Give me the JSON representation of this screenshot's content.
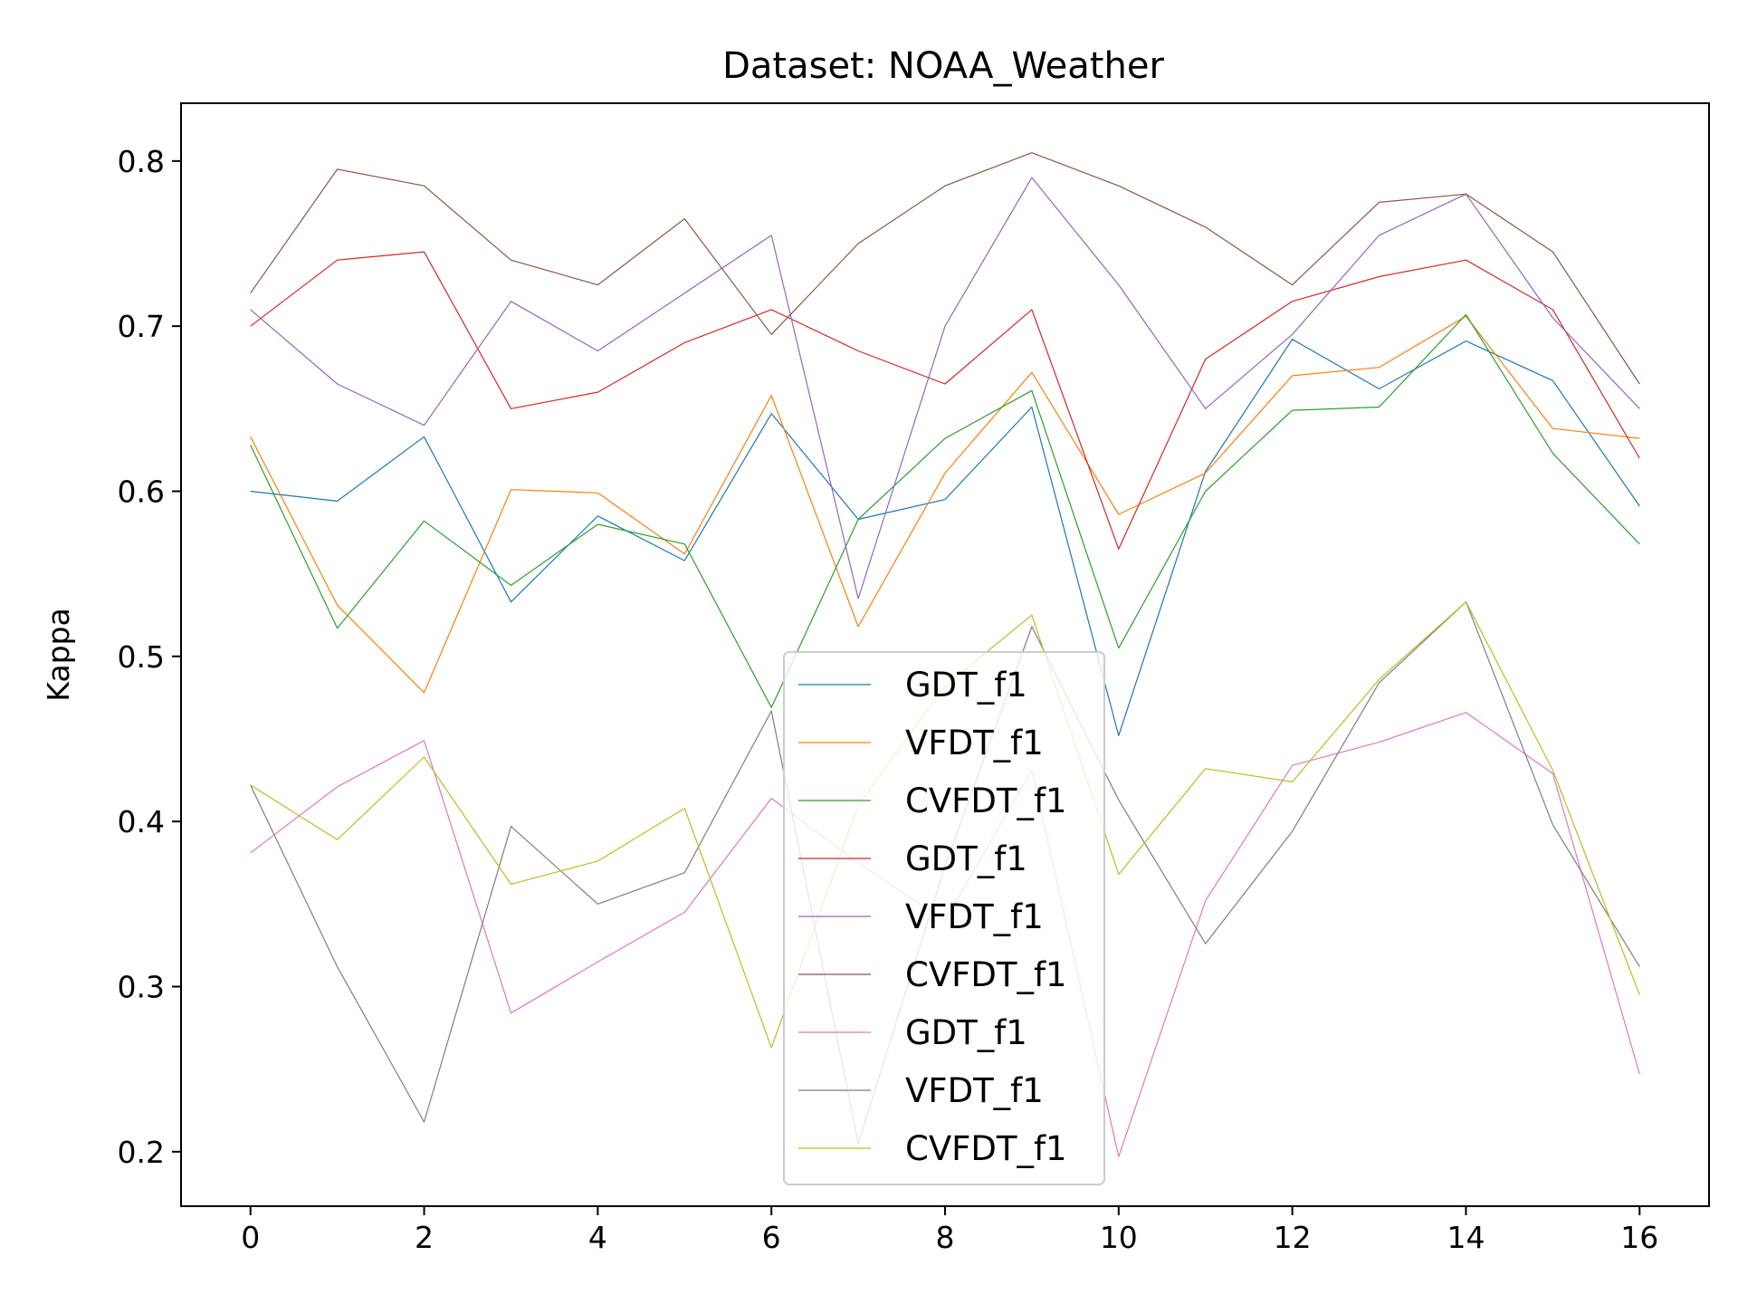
{
  "chart_data": {
    "type": "line",
    "title": "Dataset: NOAA_Weather",
    "xlabel": "",
    "ylabel": "Kappa",
    "xlim": [
      -0.8,
      16.8
    ],
    "ylim": [
      0.167,
      0.835
    ],
    "xticks": [
      0,
      2,
      4,
      6,
      8,
      10,
      12,
      14,
      16
    ],
    "yticks": [
      0.2,
      0.3,
      0.4,
      0.5,
      0.6,
      0.7,
      0.8
    ],
    "xtick_labels": [
      "0",
      "2",
      "4",
      "6",
      "8",
      "10",
      "12",
      "14",
      "16"
    ],
    "ytick_labels": [
      "0.2",
      "0.3",
      "0.4",
      "0.5",
      "0.6",
      "0.7",
      "0.8"
    ],
    "grid": false,
    "legend_position": "lower-center",
    "x": [
      0,
      1,
      2,
      3,
      4,
      5,
      6,
      7,
      8,
      9,
      10,
      11,
      12,
      13,
      14,
      15,
      16
    ],
    "series": [
      {
        "name": "GDT_f1",
        "color": "#1f77b4",
        "values": [
          0.6,
          0.594,
          0.633,
          0.533,
          0.585,
          0.558,
          0.647,
          0.583,
          0.595,
          0.651,
          0.452,
          0.612,
          0.692,
          0.662,
          0.691,
          0.667,
          0.591
        ]
      },
      {
        "name": "VFDT_f1",
        "color": "#ff7f0e",
        "values": [
          0.633,
          0.531,
          0.478,
          0.601,
          0.599,
          0.562,
          0.658,
          0.518,
          0.611,
          0.672,
          0.586,
          0.611,
          0.67,
          0.675,
          0.706,
          0.638,
          0.632
        ]
      },
      {
        "name": "CVFDT_f1",
        "color": "#2ca02c",
        "values": [
          0.628,
          0.517,
          0.582,
          0.543,
          0.58,
          0.568,
          0.469,
          0.583,
          0.632,
          0.661,
          0.505,
          0.6,
          0.649,
          0.651,
          0.707,
          0.623,
          0.568
        ]
      },
      {
        "name": "GDT_f1",
        "color": "#d62728",
        "values": [
          0.7,
          0.74,
          0.745,
          0.65,
          0.66,
          0.69,
          0.71,
          0.685,
          0.665,
          0.71,
          0.565,
          0.68,
          0.715,
          0.73,
          0.74,
          0.71,
          0.62
        ]
      },
      {
        "name": "VFDT_f1",
        "color": "#9467bd",
        "values": [
          0.71,
          0.665,
          0.64,
          0.715,
          0.685,
          0.72,
          0.755,
          0.535,
          0.7,
          0.79,
          0.725,
          0.65,
          0.695,
          0.755,
          0.78,
          0.705,
          0.65
        ]
      },
      {
        "name": "CVFDT_f1",
        "color": "#8c564b",
        "values": [
          0.72,
          0.795,
          0.785,
          0.74,
          0.725,
          0.765,
          0.695,
          0.75,
          0.785,
          0.805,
          0.785,
          0.76,
          0.725,
          0.775,
          0.78,
          0.745,
          0.665
        ]
      },
      {
        "name": "GDT_f1",
        "color": "#e377c2",
        "values": [
          0.381,
          0.421,
          0.449,
          0.284,
          0.315,
          0.345,
          0.414,
          0.375,
          0.34,
          0.431,
          0.197,
          0.352,
          0.434,
          0.448,
          0.466,
          0.429,
          0.247
        ]
      },
      {
        "name": "VFDT_f1",
        "color": "#7f7f7f",
        "values": [
          0.422,
          0.312,
          0.218,
          0.397,
          0.35,
          0.369,
          0.467,
          0.205,
          0.373,
          0.518,
          0.413,
          0.326,
          0.394,
          0.484,
          0.533,
          0.398,
          0.312
        ]
      },
      {
        "name": "CVFDT_f1",
        "color": "#bcbd22",
        "values": [
          0.422,
          0.389,
          0.439,
          0.362,
          0.376,
          0.408,
          0.263,
          0.41,
          0.482,
          0.525,
          0.368,
          0.432,
          0.424,
          0.486,
          0.533,
          0.431,
          0.295
        ]
      }
    ]
  }
}
